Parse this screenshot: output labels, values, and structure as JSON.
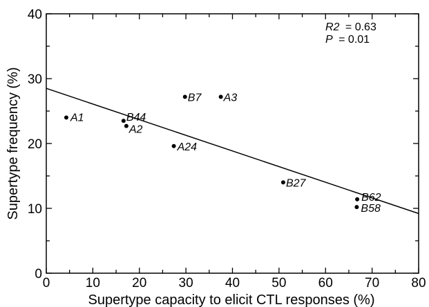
{
  "chart_data": {
    "type": "scatter",
    "xlabel": "Supertype capacity to elicit CTL responses (%)",
    "ylabel": "Supertype frequency (%)",
    "xlim": [
      0,
      80
    ],
    "ylim": [
      0,
      40
    ],
    "x_ticks": [
      0,
      10,
      20,
      30,
      40,
      50,
      60,
      70,
      80
    ],
    "y_ticks": [
      0,
      10,
      20,
      30,
      40
    ],
    "grid": false,
    "points": [
      {
        "label": "A1",
        "x": 4.3,
        "y": 24.0
      },
      {
        "label": "B44",
        "x": 16.6,
        "y": 23.5
      },
      {
        "label": "A2",
        "x": 17.2,
        "y": 22.7
      },
      {
        "label": "A24",
        "x": 27.4,
        "y": 19.6
      },
      {
        "label": "B7",
        "x": 29.8,
        "y": 27.2
      },
      {
        "label": "A3",
        "x": 37.5,
        "y": 27.2
      },
      {
        "label": "B27",
        "x": 50.9,
        "y": 14.0
      },
      {
        "label": "B62",
        "x": 66.8,
        "y": 11.4
      },
      {
        "label": "B58",
        "x": 66.7,
        "y": 10.2
      }
    ],
    "regression_line": {
      "x": [
        0,
        80
      ],
      "y": [
        28.5,
        9.2
      ]
    },
    "annotation": {
      "r2_label": "R2",
      "r2_value": "= 0.63",
      "p_label": "P",
      "p_value": "= 0.01"
    }
  }
}
